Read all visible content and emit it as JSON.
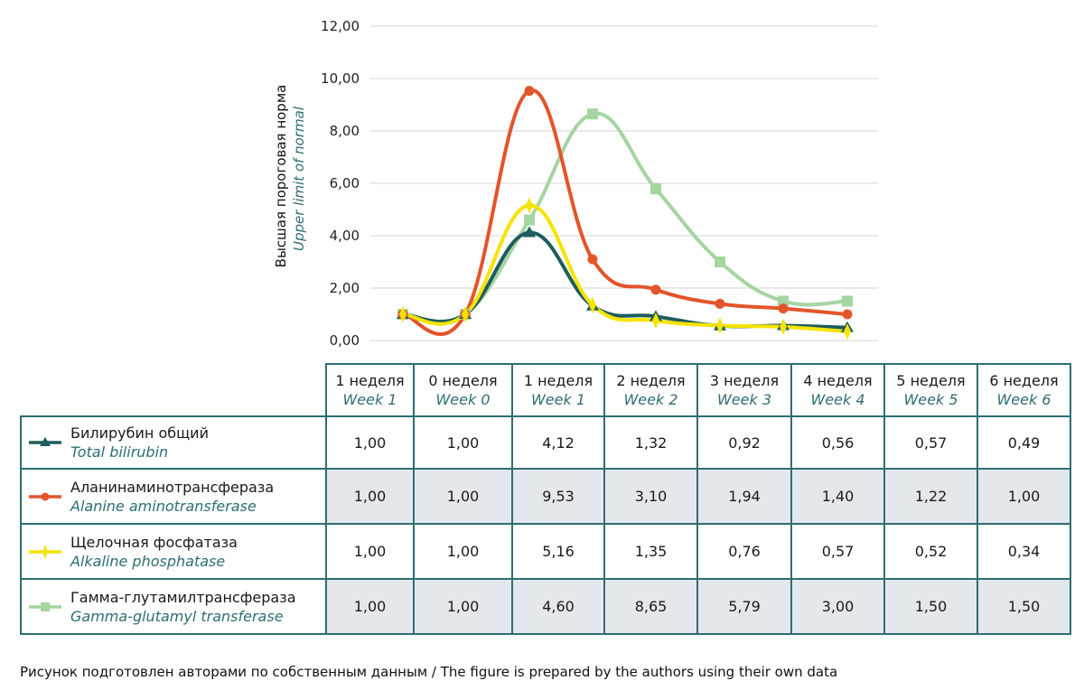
{
  "chart_data": {
    "type": "line",
    "y_axis": {
      "label_ru": "Высшая пороговая норма",
      "label_en": "Upper limit of normal",
      "ylim": [
        0,
        12
      ],
      "ticks": [
        "0,00",
        "2,00",
        "4,00",
        "6,00",
        "8,00",
        "10,00",
        "12,00"
      ]
    },
    "grid": true,
    "categories": [
      {
        "ru": "1 неделя",
        "en": "Week 1"
      },
      {
        "ru": "0 неделя",
        "en": "Week 0"
      },
      {
        "ru": "1 неделя",
        "en": "Week 1"
      },
      {
        "ru": "2 неделя",
        "en": "Week 2"
      },
      {
        "ru": "3 неделя",
        "en": "Week 3"
      },
      {
        "ru": "4 неделя",
        "en": "Week 4"
      },
      {
        "ru": "5 неделя",
        "en": "Week 5"
      },
      {
        "ru": "6 неделя",
        "en": "Week 6"
      }
    ],
    "series": [
      {
        "name_ru": "Билирубин общий",
        "name_en": "Total bilirubin",
        "color": "#1f5c5c",
        "marker": "triangle",
        "shade": false,
        "values": [
          1.0,
          1.0,
          4.12,
          1.32,
          0.92,
          0.56,
          0.57,
          0.49
        ],
        "labels": [
          "1,00",
          "1,00",
          "4,12",
          "1,32",
          "0,92",
          "0,56",
          "0,57",
          "0,49"
        ]
      },
      {
        "name_ru": "Аланинаминотрансфераза",
        "name_en": "Alanine aminotransferase",
        "color": "#e2552b",
        "marker": "circle",
        "shade": true,
        "values": [
          1.0,
          1.0,
          9.53,
          3.1,
          1.94,
          1.4,
          1.22,
          1.0
        ],
        "labels": [
          "1,00",
          "1,00",
          "9,53",
          "3,10",
          "1,94",
          "1,40",
          "1,22",
          "1,00"
        ]
      },
      {
        "name_ru": "Щелочная фосфатаза",
        "name_en": "Alkaline phosphatase",
        "color": "#f5e400",
        "marker": "diamond",
        "shade": false,
        "values": [
          1.0,
          1.0,
          5.16,
          1.35,
          0.76,
          0.57,
          0.52,
          0.34
        ],
        "labels": [
          "1,00",
          "1,00",
          "5,16",
          "1,35",
          "0,76",
          "0,57",
          "0,52",
          "0,34"
        ]
      },
      {
        "name_ru": "Гамма-глутамилтрансфераза",
        "name_en": "Gamma-glutamyl transferase",
        "color": "#a6d4a2",
        "marker": "square",
        "shade": true,
        "values": [
          1.0,
          1.0,
          4.6,
          8.65,
          5.79,
          3.0,
          1.5,
          1.5
        ],
        "labels": [
          "1,00",
          "1,00",
          "4,60",
          "8,65",
          "5,79",
          "3,00",
          "1,50",
          "1,50"
        ]
      }
    ]
  },
  "caption": "Рисунок подготовлен авторами по собственным данным / The figure is prepared by the authors using their own data"
}
